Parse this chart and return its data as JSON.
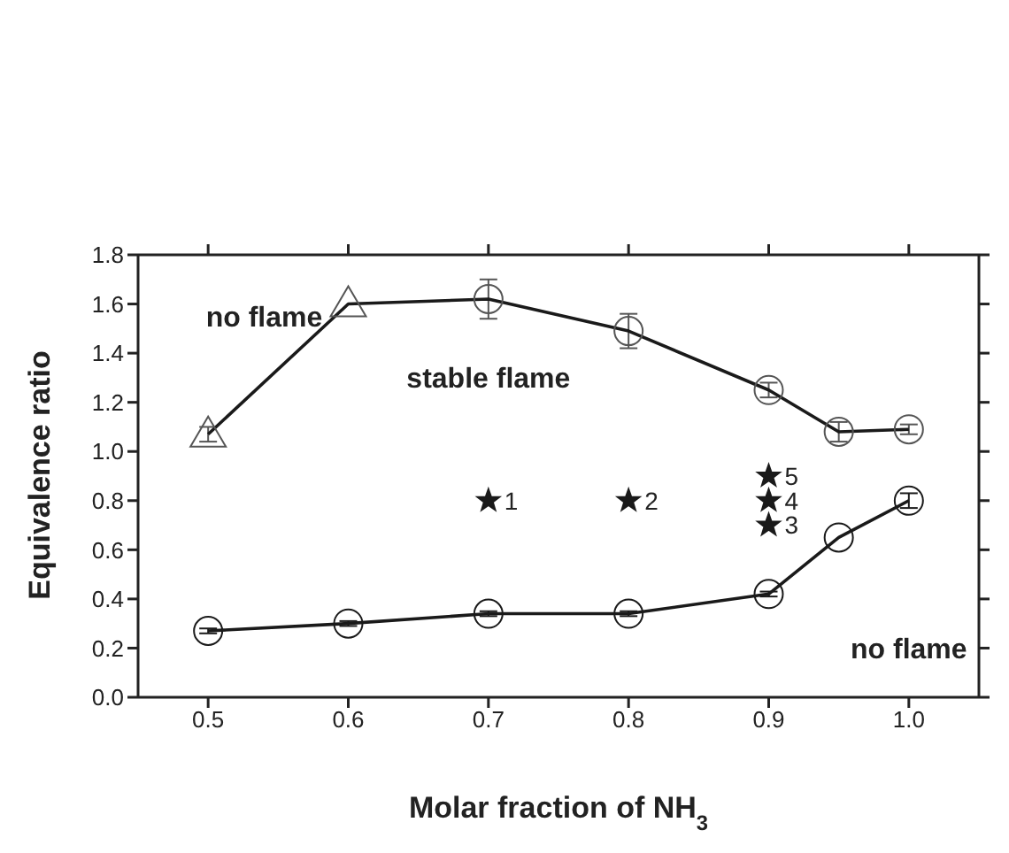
{
  "chart_data": {
    "type": "line",
    "xlabel": "Molar fraction of NH$_{3}$",
    "ylabel": "Equivalence ratio",
    "xlim": [
      0.45,
      1.05
    ],
    "xticks": [
      0.5,
      0.6,
      0.7,
      0.8,
      0.9,
      {
        "value": 1,
        "label": "1.0"
      }
    ],
    "ylim": [
      0,
      1.8
    ],
    "yticks": [
      {
        "value": 0,
        "label": "0.0"
      },
      0.2,
      0.4,
      0.6,
      0.8,
      {
        "value": 1,
        "label": "1.0"
      },
      1.2,
      1.4,
      1.6,
      1.8
    ],
    "grid": false,
    "legend": false,
    "series": [
      {
        "color": "#1a1a1a",
        "marker": "none",
        "x": [
          0.5,
          0.6,
          0.7,
          0.8,
          0.9,
          0.95,
          1.0
        ],
        "values": [
          1.07,
          1.6,
          1.62,
          1.49,
          1.25,
          1.08,
          1.09
        ]
      },
      {
        "type": "scatter",
        "color": "#555555",
        "marker": "triangle",
        "x": [
          0.5,
          0.6
        ],
        "values": [
          1.07,
          1.6
        ],
        "errors": [
          0.03,
          null
        ]
      },
      {
        "type": "scatter",
        "color": "#555555",
        "marker": "circle",
        "x": [
          0.7,
          0.8,
          0.9,
          0.95,
          1.0
        ],
        "values": [
          1.62,
          1.49,
          1.25,
          1.08,
          1.09
        ],
        "errors": [
          0.08,
          0.07,
          0.03,
          0.04,
          0.02
        ]
      },
      {
        "color": "#1a1a1a",
        "marker": "circle",
        "x": [
          0.5,
          0.6,
          0.7,
          0.8,
          0.9,
          0.95,
          1.0
        ],
        "values": [
          0.27,
          0.3,
          0.34,
          0.34,
          0.42,
          0.65,
          0.8
        ],
        "errors": [
          0.01,
          0.01,
          0.01,
          0.01,
          0.01,
          null,
          0.03
        ]
      },
      {
        "type": "scatter",
        "color": "#1a1a1a",
        "marker": "star",
        "x": [
          0.7,
          0.8,
          0.9,
          0.9,
          0.9
        ],
        "values": [
          0.8,
          0.8,
          0.7,
          0.8,
          0.9
        ]
      }
    ],
    "annotations": [
      "no flame",
      "stable flame",
      "no flame",
      {
        "text": "1",
        "x": 0.7,
        "y": 0.8
      },
      {
        "text": "2",
        "x": 0.8,
        "y": 0.8
      },
      {
        "text": "3",
        "x": 0.9,
        "y": 0.7
      },
      {
        "text": "4",
        "x": 0.9,
        "y": 0.8
      },
      {
        "text": "5",
        "x": 0.9,
        "y": 0.9
      }
    ]
  }
}
